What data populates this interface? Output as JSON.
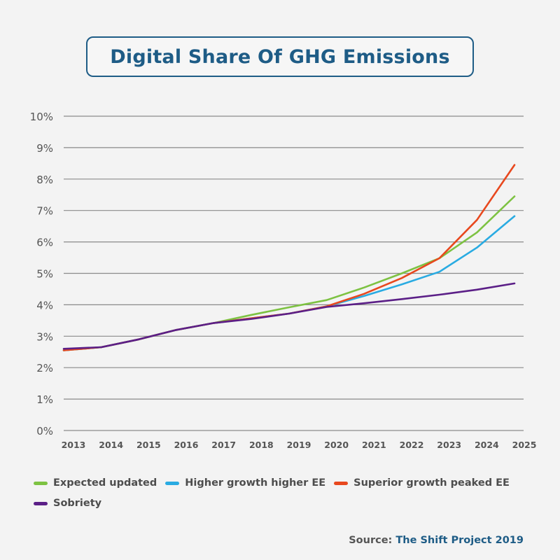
{
  "chart_data": {
    "type": "line",
    "title": "Digital Share Of GHG Emissions",
    "x": [
      "2013",
      "2014",
      "2015",
      "2016",
      "2017",
      "2018",
      "2019",
      "2020",
      "2021",
      "2022",
      "2023",
      "2024",
      "2025"
    ],
    "y_ticks": [
      "0%",
      "1%",
      "2%",
      "3%",
      "4%",
      "5%",
      "6%",
      "7%",
      "8%",
      "9%",
      "10%"
    ],
    "ylim": [
      0,
      10
    ],
    "grid": true,
    "legend_position": "bottom",
    "series": [
      {
        "name": "Expected updated",
        "color": "#7dc242",
        "values": [
          2.55,
          2.65,
          2.9,
          3.2,
          3.42,
          3.68,
          3.92,
          4.15,
          4.55,
          5.0,
          5.48,
          6.3,
          7.45
        ]
      },
      {
        "name": "Higher growth higher EE",
        "color": "#29abe2",
        "values": [
          2.55,
          2.65,
          2.9,
          3.2,
          3.42,
          3.57,
          3.72,
          3.95,
          4.28,
          4.65,
          5.05,
          5.82,
          6.82
        ]
      },
      {
        "name": "Superior growth peaked EE",
        "color": "#e8481e",
        "values": [
          2.55,
          2.65,
          2.9,
          3.2,
          3.42,
          3.57,
          3.72,
          3.95,
          4.35,
          4.85,
          5.48,
          6.7,
          8.45
        ]
      },
      {
        "name": "Sobriety",
        "color": "#5b1f87",
        "values": [
          2.6,
          2.65,
          2.9,
          3.2,
          3.42,
          3.55,
          3.72,
          3.93,
          4.05,
          4.18,
          4.32,
          4.48,
          4.68
        ]
      }
    ],
    "source_label": "Source:",
    "source_org": "The Shift Project 2019"
  }
}
